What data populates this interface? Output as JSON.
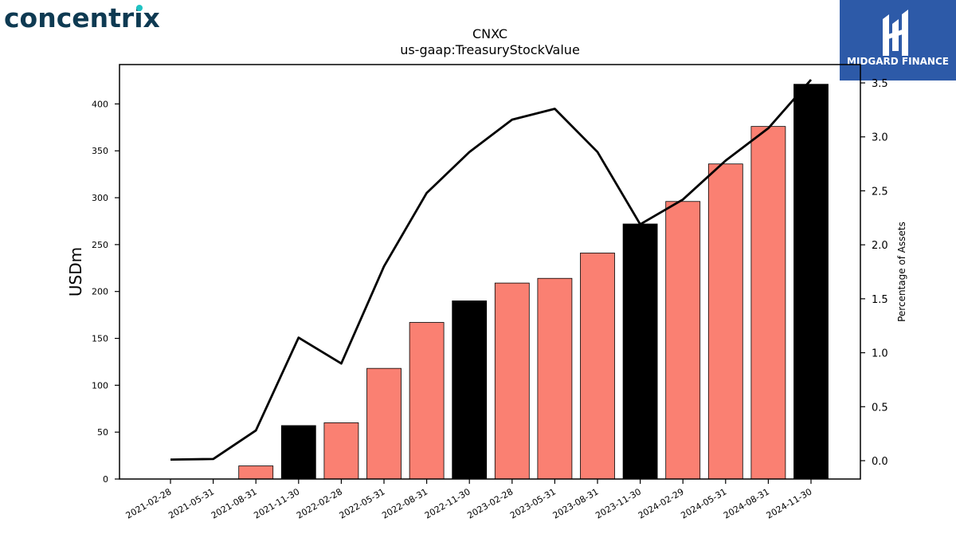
{
  "branding": {
    "company_logo_text": "concentrix",
    "publisher_logo_text": "MIDGARD FINANCE"
  },
  "colors": {
    "bar_default": "#fa8072",
    "bar_highlight": "#000000",
    "line": "#000000",
    "publisher_bg": "#2d5aa8"
  },
  "chart_data": {
    "type": "bar",
    "title": "CNXC",
    "subtitle": "us-gaap:TreasuryStockValue",
    "ylabel": "USDm",
    "y2label": "Percentage of Assets",
    "ylim": [
      0,
      442
    ],
    "y2lim": [
      -0.17,
      3.67
    ],
    "yticks": [
      0,
      50,
      100,
      150,
      200,
      250,
      300,
      350,
      400
    ],
    "y2ticks": [
      "0.0",
      "0.5",
      "1.0",
      "1.5",
      "2.0",
      "2.5",
      "3.0",
      "3.5"
    ],
    "categories": [
      "2021-02-28",
      "2021-05-31",
      "2021-08-31",
      "2021-11-30",
      "2022-02-28",
      "2022-05-31",
      "2022-08-31",
      "2022-11-30",
      "2023-02-28",
      "2023-05-31",
      "2023-08-31",
      "2023-11-30",
      "2024-02-29",
      "2024-05-31",
      "2024-08-31",
      "2024-11-30"
    ],
    "series": [
      {
        "type": "bar",
        "axis": "left",
        "values": [
          0,
          0,
          14,
          57,
          60,
          118,
          167,
          190,
          209,
          214,
          241,
          272,
          296,
          336,
          376,
          421
        ],
        "highlighted": [
          false,
          false,
          false,
          true,
          false,
          false,
          false,
          true,
          false,
          false,
          false,
          true,
          false,
          false,
          false,
          true
        ]
      },
      {
        "type": "line",
        "axis": "right",
        "values": [
          0.01,
          0.015,
          0.28,
          1.14,
          0.9,
          1.8,
          2.48,
          2.86,
          3.16,
          3.26,
          2.86,
          2.19,
          2.42,
          2.78,
          3.08,
          3.53
        ]
      }
    ],
    "grid": false,
    "legend": "none"
  }
}
